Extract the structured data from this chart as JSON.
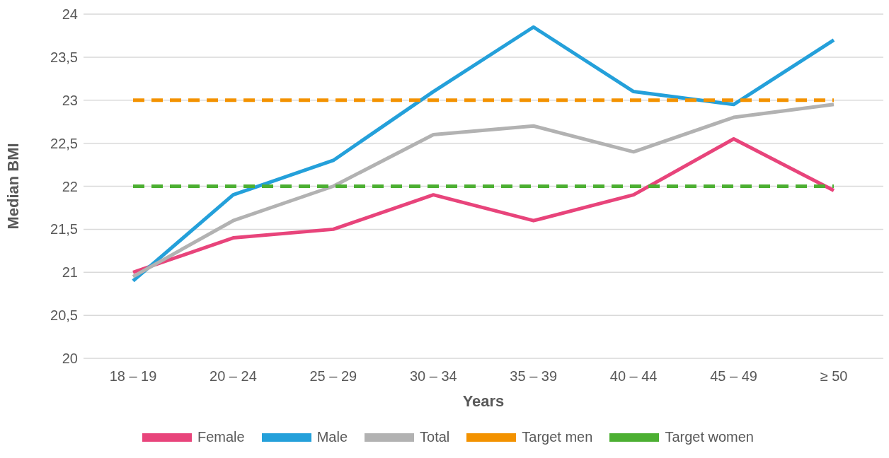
{
  "chart_data": {
    "type": "line",
    "xlabel": "Years",
    "ylabel": "Median BMI",
    "categories": [
      "18 – 19",
      "20 – 24",
      "25 – 29",
      "30 – 34",
      "35 – 39",
      "40 – 44",
      "45 – 49",
      "≥ 50"
    ],
    "series": [
      {
        "name": "Female",
        "color": "#e8447b",
        "values": [
          21.0,
          21.4,
          21.5,
          21.9,
          21.6,
          21.9,
          22.55,
          21.95
        ]
      },
      {
        "name": "Male",
        "color": "#24a0da",
        "values": [
          20.9,
          21.9,
          22.3,
          23.1,
          23.85,
          23.1,
          22.95,
          23.7
        ]
      },
      {
        "name": "Total",
        "color": "#b2b2b2",
        "values": [
          20.95,
          21.6,
          22.0,
          22.6,
          22.7,
          22.4,
          22.8,
          22.95
        ]
      },
      {
        "name": "Target men",
        "color": "#f39200",
        "line_style": "dashed",
        "values": [
          23,
          23,
          23,
          23,
          23,
          23,
          23,
          23
        ]
      },
      {
        "name": "Target women",
        "color": "#4caf32",
        "line_style": "dashed",
        "values": [
          22,
          22,
          22,
          22,
          22,
          22,
          22,
          22
        ]
      }
    ],
    "ylim": [
      20,
      24
    ],
    "yticks": [
      20,
      {
        "value": 20.5,
        "label": "20,5"
      },
      21,
      {
        "value": 21.5,
        "label": "21,5"
      },
      22,
      {
        "value": 22.5,
        "label": "22,5"
      },
      23,
      {
        "value": 23.5,
        "label": "23,5"
      },
      24
    ],
    "grid": "y",
    "legend": "bottom",
    "marker": "none"
  }
}
